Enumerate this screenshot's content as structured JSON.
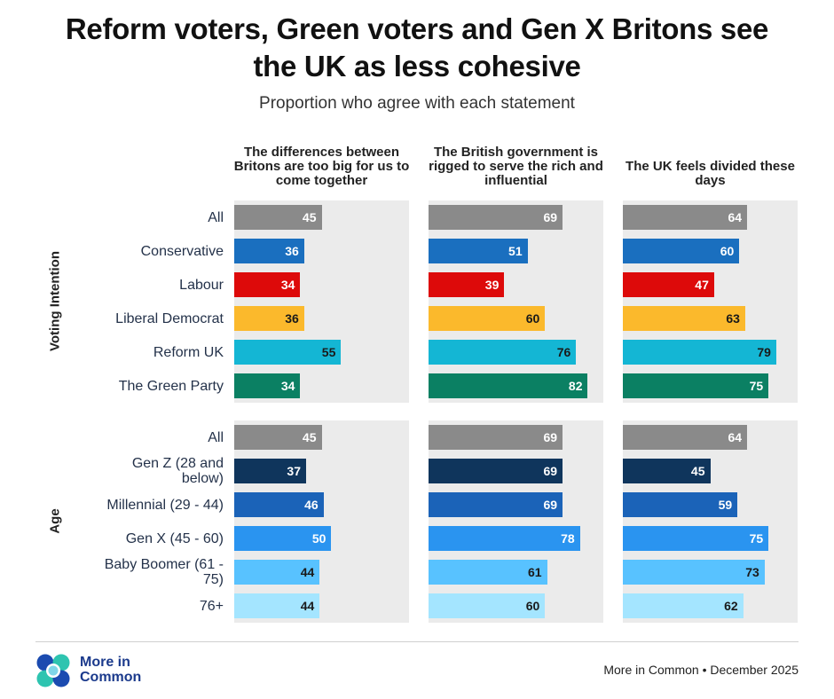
{
  "title_line1": "Reform voters, Green voters and Gen X Britons see",
  "title_line2": "the UK as less cohesive",
  "subtitle": "Proportion who agree with each statement",
  "chart_data": {
    "type": "bar",
    "orientation": "horizontal",
    "title": "Reform voters, Green voters and Gen X Britons see the UK as less cohesive",
    "subtitle": "Proportion who agree with each statement",
    "xlim": [
      0,
      100
    ],
    "statements": [
      "The differences between Britons are too big for us to come together",
      "The British government is rigged to serve the rich and influential",
      "The UK feels divided these days"
    ],
    "groups": [
      {
        "name": "Voting Intention",
        "rows": [
          {
            "label": "All",
            "color": "#8a8a8a",
            "text_color": "#ffffff",
            "values": [
              45,
              69,
              64
            ]
          },
          {
            "label": "Conservative",
            "color": "#1a6fbf",
            "text_color": "#ffffff",
            "values": [
              36,
              51,
              60
            ]
          },
          {
            "label": "Labour",
            "color": "#dd0a0a",
            "text_color": "#ffffff",
            "values": [
              34,
              39,
              47
            ]
          },
          {
            "label": "Liberal Democrat",
            "color": "#fbb92c",
            "text_color": "#1a1a1a",
            "values": [
              36,
              60,
              63
            ]
          },
          {
            "label": "Reform UK",
            "color": "#14b6d4",
            "text_color": "#1a1a1a",
            "values": [
              55,
              76,
              79
            ]
          },
          {
            "label": "The Green Party",
            "color": "#0b8063",
            "text_color": "#ffffff",
            "values": [
              34,
              82,
              75
            ]
          }
        ]
      },
      {
        "name": "Age",
        "rows": [
          {
            "label": "All",
            "color": "#8a8a8a",
            "text_color": "#ffffff",
            "values": [
              45,
              69,
              64
            ]
          },
          {
            "label": "Gen Z (28 and below)",
            "color": "#0f355c",
            "text_color": "#ffffff",
            "values": [
              37,
              69,
              45
            ]
          },
          {
            "label": "Millennial (29 - 44)",
            "color": "#1b63b8",
            "text_color": "#ffffff",
            "values": [
              46,
              69,
              59
            ]
          },
          {
            "label": "Gen X (45 - 60)",
            "color": "#2a94f0",
            "text_color": "#ffffff",
            "values": [
              50,
              78,
              75
            ]
          },
          {
            "label": "Baby Boomer (61 - 75)",
            "color": "#58c2ff",
            "text_color": "#1a1a1a",
            "values": [
              44,
              61,
              73
            ]
          },
          {
            "label": "76+",
            "color": "#a4e5ff",
            "text_color": "#1a1a1a",
            "values": [
              44,
              60,
              62
            ]
          }
        ]
      }
    ]
  },
  "footer": {
    "logo_line1": "More in",
    "logo_line2": "Common",
    "credit": "More in Common • December 2025"
  }
}
